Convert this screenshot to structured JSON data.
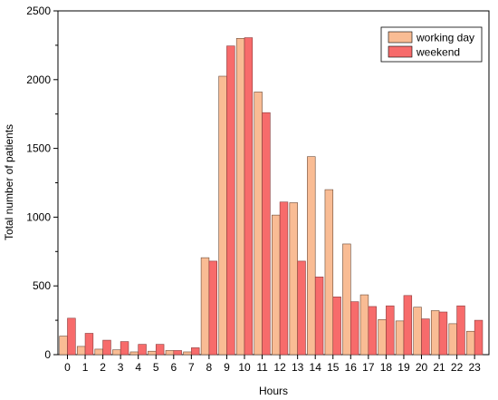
{
  "chart_data": {
    "type": "bar",
    "xlabel": "Hours",
    "ylabel": "Total number of patients",
    "ylim": [
      0,
      2500
    ],
    "yticks": [
      0,
      500,
      1000,
      1500,
      2000,
      2500
    ],
    "grid": false,
    "legend_position": "top-right",
    "categories": [
      "0",
      "1",
      "2",
      "3",
      "4",
      "5",
      "6",
      "7",
      "8",
      "9",
      "10",
      "11",
      "12",
      "13",
      "14",
      "15",
      "16",
      "17",
      "18",
      "19",
      "20",
      "21",
      "22",
      "23"
    ],
    "series": [
      {
        "name": "working day",
        "color": "#f9bc94",
        "values": [
          135,
          60,
          40,
          35,
          20,
          25,
          30,
          20,
          705,
          2025,
          2300,
          1910,
          1015,
          1105,
          1440,
          1200,
          805,
          435,
          255,
          245,
          345,
          320,
          225,
          170
        ]
      },
      {
        "name": "weekend",
        "color": "#f76b6b",
        "values": [
          265,
          155,
          105,
          95,
          75,
          75,
          30,
          50,
          680,
          2245,
          2305,
          1760,
          1110,
          680,
          565,
          420,
          385,
          350,
          355,
          430,
          260,
          310,
          355,
          250
        ]
      }
    ]
  }
}
